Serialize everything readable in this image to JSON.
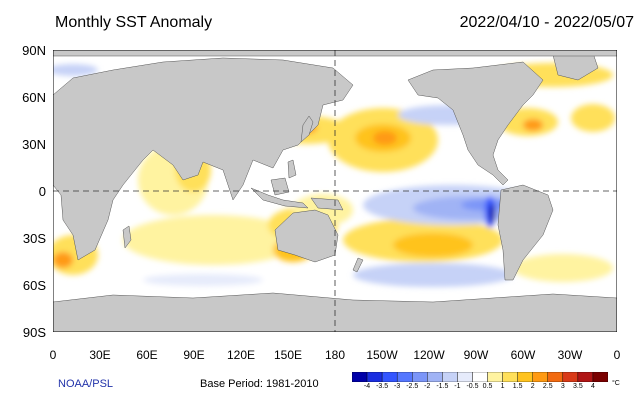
{
  "title": "Monthly SST Anomaly",
  "date_range": "2022/04/10 - 2022/05/07",
  "lat_labels": [
    "90N",
    "60N",
    "30N",
    "0",
    "30S",
    "60S",
    "90S"
  ],
  "lon_labels": [
    "0",
    "30E",
    "60E",
    "90E",
    "120E",
    "150E",
    "180",
    "150W",
    "120W",
    "90W",
    "60W",
    "30W",
    "0"
  ],
  "credit": "NOAA/PSL",
  "base_period": "Base Period: 1981-2010",
  "colorbar": {
    "unit": "°C",
    "labels": [
      "-4",
      "-3.5",
      "-3",
      "-2.5",
      "-2",
      "-1.5",
      "-1",
      "-0.5",
      "0.5",
      "1",
      "1.5",
      "2",
      "2.5",
      "3",
      "3.5",
      "4"
    ],
    "colors": [
      "#0000a8",
      "#1a2ee0",
      "#3355ff",
      "#5577ff",
      "#7b95f8",
      "#a0b3f5",
      "#c6d2f7",
      "#e6ebfb",
      "#ffffff",
      "#fff3a0",
      "#ffe05a",
      "#ffc31f",
      "#ff9a12",
      "#f26a10",
      "#d93a18",
      "#b01515",
      "#7a0000"
    ]
  },
  "colors": {
    "land": "#c8c8c8",
    "ocean": "#ffffff",
    "grid": "#333333"
  }
}
